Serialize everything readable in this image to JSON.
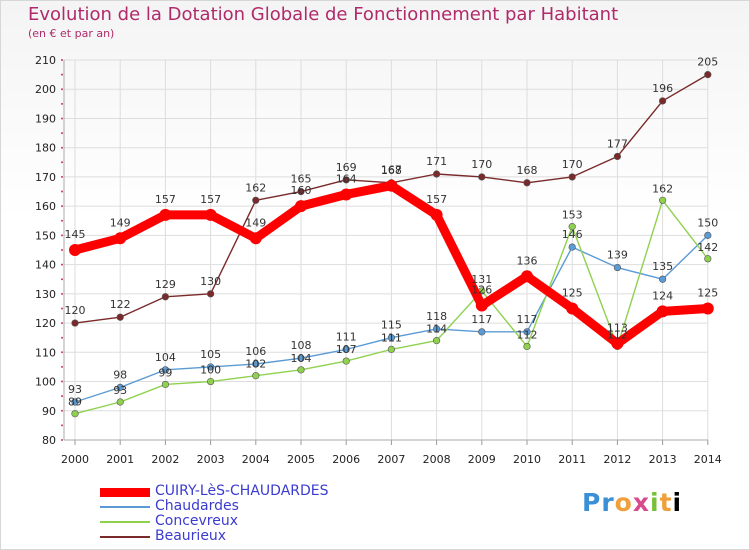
{
  "header": {
    "title": "Evolution de la Dotation Globale de Fonctionnement par Habitant",
    "subtitle": "(en € et par an)"
  },
  "brand": {
    "text": "Proxiti",
    "letters": [
      "P",
      "r",
      "o",
      "x",
      "i",
      "t",
      "i"
    ]
  },
  "chart_data": {
    "type": "line",
    "title": "Evolution de la Dotation Globale de Fonctionnement par Habitant",
    "subtitle": "(en € et par an)",
    "xlabel": "",
    "ylabel": "",
    "ylim": [
      80,
      210
    ],
    "yticks": [
      80,
      90,
      100,
      110,
      120,
      130,
      140,
      150,
      160,
      170,
      180,
      190,
      200,
      210
    ],
    "grid": true,
    "legend_position": "bottom-left",
    "x": [
      "2000",
      "2001",
      "2002",
      "2003",
      "2004",
      "2005",
      "2006",
      "2007",
      "2008",
      "2009",
      "2010",
      "2011",
      "2012",
      "2013",
      "2014"
    ],
    "series": [
      {
        "name": "CUIRY-LèS-CHAUDARDES",
        "color": "#ff0000",
        "values": [
          145,
          149,
          157,
          157,
          149,
          160,
          164,
          167,
          157,
          126,
          136,
          125,
          113,
          124,
          125
        ],
        "labels": [
          "145",
          "149",
          "157",
          "157",
          "149",
          "160",
          "164",
          "167",
          "157",
          "126",
          "136",
          "125",
          "113",
          "124",
          "125"
        ]
      },
      {
        "name": "Chaudardes",
        "color": "#5b9bd5",
        "values": [
          93,
          98,
          104,
          105,
          106,
          108,
          111,
          115,
          118,
          117,
          117,
          146,
          139,
          135,
          150
        ],
        "labels": [
          "93",
          "98",
          "104",
          "105",
          "106",
          "108",
          "111",
          "115",
          "118",
          "117",
          "117",
          "146",
          "139",
          "135",
          "150"
        ]
      },
      {
        "name": "Concevreux",
        "color": "#8fd14f",
        "values": [
          89,
          93,
          99,
          100,
          102,
          104,
          107,
          111,
          114,
          131,
          112,
          153,
          112,
          162,
          142
        ],
        "labels": [
          "89",
          "93",
          "99",
          "100",
          "102",
          "104",
          "107",
          "111",
          "114",
          "131",
          "112",
          "153",
          "112",
          "162",
          "142"
        ]
      },
      {
        "name": "Beaurieux",
        "color": "#7a2a2a",
        "values": [
          120,
          122,
          129,
          130,
          162,
          165,
          169,
          168,
          171,
          170,
          168,
          170,
          177,
          196,
          205
        ],
        "labels": [
          "120",
          "122",
          "129",
          "130",
          "162",
          "165",
          "169",
          "168",
          "171",
          "170",
          "168",
          "170",
          "177",
          "196",
          "205"
        ]
      }
    ]
  }
}
